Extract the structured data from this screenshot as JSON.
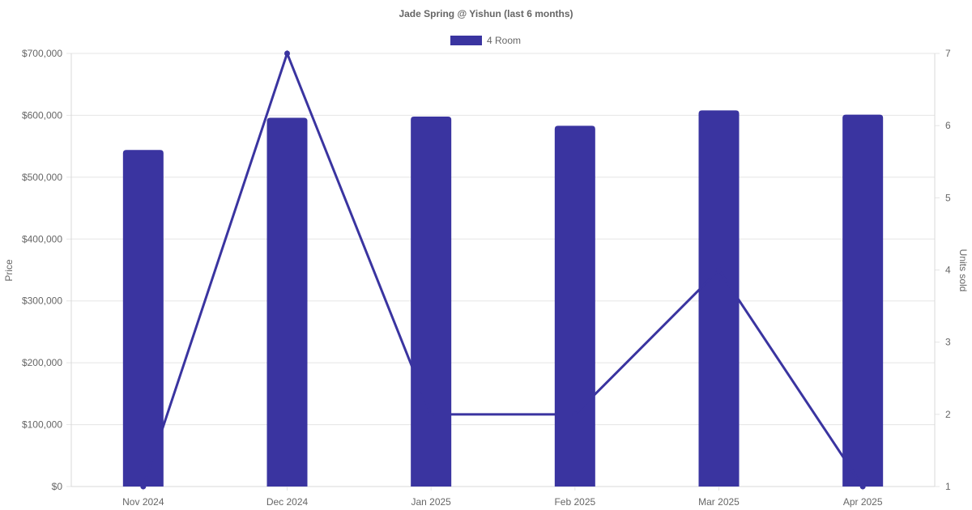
{
  "chart_data": {
    "type": "bar",
    "title": "Jade Spring @ Yishun (last 6 months)",
    "categories": [
      "Nov 2024",
      "Dec 2024",
      "Jan 2025",
      "Feb 2025",
      "Mar 2025",
      "Apr 2025"
    ],
    "series": [
      {
        "name": "4 Room",
        "type": "bar",
        "axis": "left",
        "values": [
          544000,
          596000,
          598000,
          583000,
          608000,
          601000
        ]
      },
      {
        "type": "line",
        "axis": "right",
        "values": [
          1,
          7,
          2,
          2,
          4,
          1
        ]
      }
    ],
    "ylabel": "Price",
    "y2label": "Units sold",
    "ylim": [
      0,
      700000
    ],
    "y2lim": [
      1,
      7
    ],
    "yticks": [
      "$0",
      "$100,000",
      "$200,000",
      "$300,000",
      "$400,000",
      "$500,000",
      "$600,000",
      "$700,000"
    ],
    "y2ticks": [
      "1",
      "2",
      "3",
      "4",
      "5",
      "6",
      "7"
    ],
    "grid": true,
    "legend": "top-center",
    "colors": {
      "bar": "#3a34a0",
      "line": "#3a34a0"
    }
  }
}
